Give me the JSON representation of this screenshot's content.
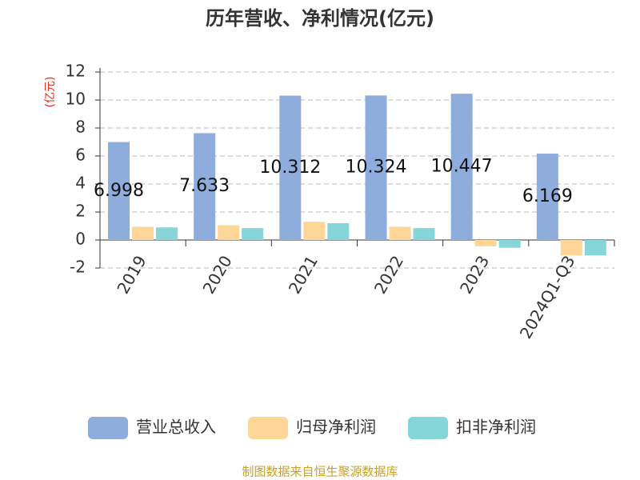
{
  "chart_data": {
    "type": "bar",
    "title": "历年营收、净利情况(亿元)",
    "y_label": "(亿元)",
    "source": "制图数据来自恒生聚源数据库",
    "categories": [
      "2019",
      "2020",
      "2021",
      "2022",
      "2023",
      "2024Q1-Q3"
    ],
    "series": [
      {
        "name": "营业总收入",
        "color": "#8eacdc",
        "values": [
          6.998,
          7.633,
          10.312,
          10.324,
          10.447,
          6.169
        ],
        "show_labels": true
      },
      {
        "name": "归母净利润",
        "color": "#fdd698",
        "values": [
          0.95,
          1.05,
          1.3,
          0.95,
          -0.45,
          -1.1
        ]
      },
      {
        "name": "扣非净利润",
        "color": "#86d5d8",
        "values": [
          0.9,
          0.85,
          1.2,
          0.85,
          -0.55,
          -1.1
        ]
      }
    ],
    "ylim": [
      -2,
      12
    ],
    "yticks": [
      -2,
      0,
      2,
      4,
      6,
      8,
      10,
      12
    ],
    "grid": true
  }
}
